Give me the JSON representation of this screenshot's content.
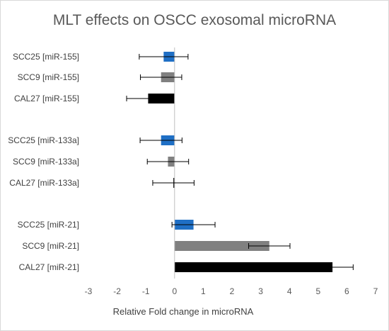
{
  "chart_data": {
    "type": "bar",
    "orientation": "horizontal",
    "title": "MLT effects on OSCC exosomal microRNA",
    "xlabel": "Relative Fold change in microRNA",
    "ylabel": "",
    "xlim": [
      -3,
      7
    ],
    "xticks": [
      "-3",
      "-2",
      "-1",
      "0",
      "1",
      "2",
      "3",
      "4",
      "5",
      "6",
      "7"
    ],
    "grid": false,
    "categories": [
      "SCC25 [miR-155]",
      "SCC9 [miR-155]",
      "CAL27 [miR-155]",
      "SCC25 [miR-133a]",
      "SCC9 [miR-133a]",
      "CAL27 [miR-133a]",
      "SCC25 [miR-21]",
      "SCC9 [miR-21]",
      "CAL27 [miR-21]"
    ],
    "values": [
      -0.38,
      -0.47,
      -0.92,
      -0.47,
      -0.23,
      -0.04,
      0.66,
      3.3,
      5.5
    ],
    "error_bars": [
      0.85,
      0.72,
      0.75,
      0.73,
      0.72,
      0.72,
      0.75,
      0.72,
      0.72
    ],
    "colors": [
      "#1f6fc5",
      "#808080",
      "#000000",
      "#1f6fc5",
      "#808080",
      "#000000",
      "#1f6fc5",
      "#808080",
      "#000000"
    ]
  }
}
